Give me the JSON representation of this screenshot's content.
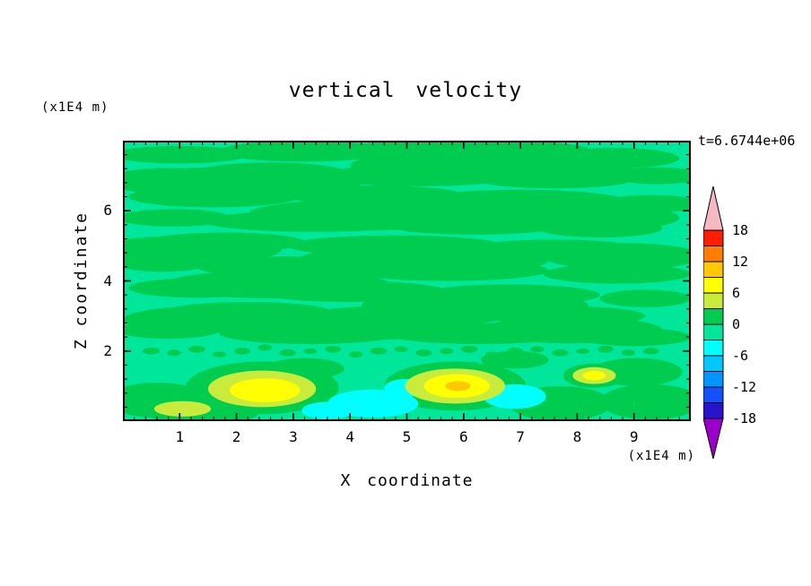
{
  "figure": {
    "title": "vertical velocity",
    "annotation": "t=6.6744e+06",
    "x_axis_label": "X coordinate",
    "y_axis_label": "Z coordinate",
    "x_unit": "(x1E4 m)",
    "y_unit": "(x1E4 m)"
  },
  "chart_data": {
    "type": "filled_contour",
    "title": "vertical velocity",
    "xlabel": "X coordinate",
    "ylabel": "Z coordinate",
    "x_unit_label": "(x1E4 m)",
    "y_unit_label": "(x1E4 m)",
    "time_annotation": "t=6.6744e+06",
    "xlim": [
      0,
      10
    ],
    "ylim": [
      0,
      8
    ],
    "xticks": [
      1,
      2,
      3,
      4,
      5,
      6,
      7,
      8,
      9
    ],
    "yticks": [
      2,
      4,
      6
    ],
    "x_minor_step": 0.2,
    "y_minor_step": 0.4,
    "grid": false,
    "colorbar": {
      "position": "right",
      "levels": [
        -18,
        -15,
        -12,
        -9,
        -6,
        -3,
        0,
        3,
        6,
        9,
        12,
        15,
        18
      ],
      "tick_labels": [
        18,
        12,
        6,
        0,
        -6,
        -12,
        -18
      ],
      "colors_bottom_to_top": [
        "#9b00c8",
        "#2814cd",
        "#1450ff",
        "#0096ff",
        "#00c8ff",
        "#00ffff",
        "#00e69b",
        "#00cd50",
        "#c8eb3c",
        "#ffff00",
        "#ffc800",
        "#ff7d00",
        "#ff1e00",
        "#f5b9c3"
      ]
    },
    "field": {
      "description": "mostly near-zero vertical velocity; streaky green field with warm updraft blobs near the bottom boundary at x=2.5, x=5.9 (peak 9-12) and x=8.3, cyan downdraft patches near x=3.6-5.0 and x=6.9",
      "background_value_range": "-3 to 0",
      "background_color": "#00e69b",
      "patch_groups": [
        {
          "value_range": "0 to 3",
          "color": "#00cd50",
          "ellipses": [
            [
              1.0,
              7.6,
              1.2,
              0.25
            ],
            [
              3.2,
              7.7,
              1.5,
              0.3
            ],
            [
              6.0,
              7.75,
              2.2,
              0.28
            ],
            [
              8.6,
              7.5,
              1.2,
              0.3
            ],
            [
              0.8,
              7.0,
              0.9,
              0.22
            ],
            [
              2.6,
              7.1,
              1.3,
              0.28
            ],
            [
              5.2,
              7.0,
              1.8,
              0.3
            ],
            [
              7.6,
              6.9,
              1.4,
              0.26
            ],
            [
              9.4,
              7.0,
              0.8,
              0.24
            ],
            [
              2.0,
              6.8,
              2.2,
              0.45
            ],
            [
              6.5,
              7.3,
              2.5,
              0.45
            ],
            [
              1.6,
              6.4,
              1.5,
              0.3
            ],
            [
              4.4,
              6.45,
              1.6,
              0.27
            ],
            [
              7.0,
              6.3,
              1.8,
              0.3
            ],
            [
              9.3,
              6.2,
              0.9,
              0.25
            ],
            [
              0.9,
              5.8,
              1.0,
              0.25
            ],
            [
              3.4,
              5.7,
              2.0,
              0.3
            ],
            [
              6.2,
              5.6,
              1.6,
              0.28
            ],
            [
              8.4,
              5.5,
              1.1,
              0.26
            ],
            [
              4.5,
              5.9,
              2.3,
              0.45
            ],
            [
              8.0,
              5.8,
              1.8,
              0.4
            ],
            [
              1.8,
              5.1,
              1.4,
              0.28
            ],
            [
              4.8,
              5.0,
              1.9,
              0.3
            ],
            [
              7.6,
              4.9,
              1.5,
              0.28
            ],
            [
              1.2,
              4.9,
              1.6,
              0.4
            ],
            [
              0.7,
              4.5,
              0.8,
              0.24
            ],
            [
              2.9,
              4.4,
              1.6,
              0.3
            ],
            [
              5.7,
              4.3,
              1.8,
              0.3
            ],
            [
              8.7,
              4.2,
              1.3,
              0.28
            ],
            [
              5.3,
              4.6,
              2.2,
              0.45
            ],
            [
              8.8,
              4.7,
              1.4,
              0.38
            ],
            [
              1.3,
              3.8,
              1.2,
              0.28
            ],
            [
              4.0,
              3.7,
              1.7,
              0.3
            ],
            [
              6.8,
              3.6,
              1.6,
              0.3
            ],
            [
              9.2,
              3.5,
              0.8,
              0.25
            ],
            [
              2.7,
              3.9,
              2.0,
              0.4
            ],
            [
              2.2,
              3.1,
              1.5,
              0.3
            ],
            [
              5.0,
              3.0,
              1.8,
              0.3
            ],
            [
              7.8,
              3.0,
              1.4,
              0.28
            ],
            [
              6.2,
              3.3,
              2.0,
              0.4
            ],
            [
              1.5,
              2.9,
              1.5,
              0.38
            ],
            [
              0.8,
              2.6,
              0.9,
              0.25
            ],
            [
              3.3,
              2.5,
              1.6,
              0.3
            ],
            [
              6.3,
              2.5,
              1.7,
              0.3
            ],
            [
              9.0,
              2.4,
              1.0,
              0.26
            ],
            [
              4.3,
              2.7,
              1.8,
              0.38
            ],
            [
              7.9,
              2.6,
              1.6,
              0.38
            ],
            [
              0.5,
              2.0,
              0.15,
              0.1
            ],
            [
              0.9,
              1.95,
              0.12,
              0.09
            ],
            [
              1.3,
              2.05,
              0.15,
              0.1
            ],
            [
              1.7,
              1.9,
              0.12,
              0.08
            ],
            [
              2.1,
              2.0,
              0.14,
              0.1
            ],
            [
              2.5,
              2.1,
              0.12,
              0.09
            ],
            [
              2.9,
              1.95,
              0.15,
              0.1
            ],
            [
              3.3,
              2.0,
              0.12,
              0.08
            ],
            [
              3.7,
              2.05,
              0.14,
              0.1
            ],
            [
              4.1,
              1.9,
              0.12,
              0.09
            ],
            [
              4.5,
              2.0,
              0.15,
              0.1
            ],
            [
              4.9,
              2.05,
              0.12,
              0.08
            ],
            [
              5.3,
              1.95,
              0.14,
              0.1
            ],
            [
              5.7,
              2.0,
              0.12,
              0.09
            ],
            [
              6.1,
              2.05,
              0.15,
              0.1
            ],
            [
              6.5,
              1.9,
              0.12,
              0.08
            ],
            [
              6.9,
              2.0,
              0.14,
              0.1
            ],
            [
              7.3,
              2.05,
              0.12,
              0.09
            ],
            [
              7.7,
              1.95,
              0.15,
              0.1
            ],
            [
              8.1,
              2.0,
              0.12,
              0.08
            ],
            [
              8.5,
              2.05,
              0.14,
              0.1
            ],
            [
              8.9,
              1.95,
              0.12,
              0.09
            ],
            [
              9.3,
              2.0,
              0.14,
              0.1
            ],
            [
              0.6,
              0.6,
              0.9,
              0.5
            ],
            [
              1.4,
              0.25,
              1.0,
              0.35
            ],
            [
              3.2,
              1.5,
              0.7,
              0.3
            ],
            [
              6.9,
              1.75,
              0.6,
              0.25
            ],
            [
              7.7,
              0.5,
              0.9,
              0.5
            ],
            [
              9.3,
              0.55,
              0.9,
              0.5
            ],
            [
              9.05,
              1.4,
              0.8,
              0.4
            ],
            [
              2.45,
              0.95,
              1.35,
              0.75
            ],
            [
              5.85,
              1.0,
              1.25,
              0.7
            ],
            [
              8.3,
              1.3,
              0.55,
              0.35
            ]
          ]
        },
        {
          "value_range": "-6 to -3",
          "color": "#00ffff",
          "ellipses": [
            [
              4.4,
              0.5,
              0.8,
              0.4
            ],
            [
              5.0,
              0.95,
              0.4,
              0.25
            ],
            [
              6.9,
              0.7,
              0.55,
              0.35
            ],
            [
              3.6,
              0.3,
              0.45,
              0.25
            ]
          ]
        },
        {
          "value_range": "3 to 6",
          "color": "#c8eb3c",
          "ellipses": [
            [
              2.45,
              0.92,
              0.95,
              0.52
            ],
            [
              5.85,
              1.0,
              0.88,
              0.5
            ],
            [
              8.3,
              1.3,
              0.38,
              0.24
            ],
            [
              1.05,
              0.35,
              0.5,
              0.22
            ]
          ]
        },
        {
          "value_range": "6 to 9",
          "color": "#ffff00",
          "ellipses": [
            [
              2.5,
              0.88,
              0.62,
              0.34
            ],
            [
              5.88,
              1.0,
              0.58,
              0.34
            ],
            [
              8.3,
              1.3,
              0.2,
              0.13
            ]
          ]
        },
        {
          "value_range": "9 to 12",
          "color": "#ffc800",
          "ellipses": [
            [
              5.9,
              1.0,
              0.22,
              0.14
            ]
          ]
        }
      ]
    }
  }
}
